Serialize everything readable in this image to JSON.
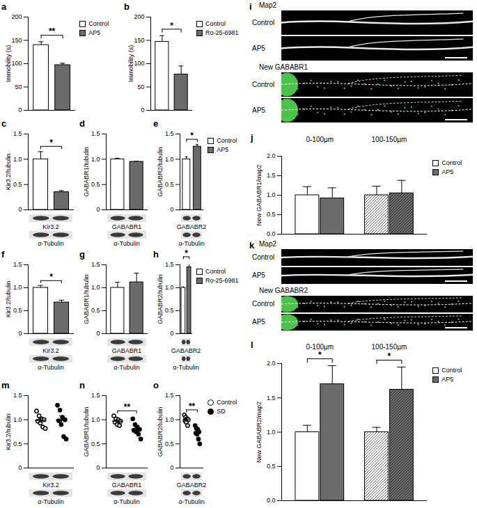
{
  "chart_data": [
    {
      "title": "a",
      "type": "bar",
      "ylabel": "Immobility (s)",
      "categories": [
        "Control",
        "AP5"
      ],
      "colors": [
        "#ffffff",
        "#6b6b6b"
      ],
      "values": [
        140,
        97
      ],
      "errors": [
        7,
        4
      ],
      "ylim": [
        0,
        200
      ],
      "yticks": [
        0,
        50,
        100,
        150,
        200
      ],
      "significance": "**",
      "legend": "right",
      "tick_labels": "y"
    },
    {
      "title": "b",
      "type": "bar",
      "ylabel": "Immobility (s)",
      "categories": [
        "Control",
        "Ro-25-6981"
      ],
      "colors": [
        "#ffffff",
        "#6b6b6b"
      ],
      "values": [
        147,
        77
      ],
      "errors": [
        13,
        18
      ],
      "ylim": [
        0,
        200
      ],
      "yticks": [
        0,
        50,
        100,
        150,
        200
      ],
      "significance": "*",
      "legend": "right",
      "tick_labels": "y"
    },
    {
      "title": "c",
      "type": "bar",
      "ylabel": "Kir3.2/tubulin",
      "categories": [
        "Control",
        "AP5"
      ],
      "colors": [
        "#ffffff",
        "#6b6b6b"
      ],
      "values": [
        1.0,
        0.35
      ],
      "errors": [
        0.15,
        0.03
      ],
      "ylim": [
        0,
        1.5
      ],
      "yticks": [
        0,
        0.5,
        {
          "value": 1,
          "label": "1.0"
        },
        1.5
      ],
      "significance": "*",
      "tick_labels": "y",
      "blots": [
        "Kir3.2",
        "α-Tubulin"
      ]
    },
    {
      "title": "d",
      "type": "bar",
      "ylabel": "GABABR1/tubulin",
      "categories": [
        "Control",
        "AP5"
      ],
      "colors": [
        "#ffffff",
        "#6b6b6b"
      ],
      "values": [
        1.0,
        0.95
      ],
      "errors": [
        0.02,
        0.01
      ],
      "ylim": [
        0,
        1.5
      ],
      "yticks": [
        0,
        0.5,
        {
          "value": 1,
          "label": "1.0"
        },
        1.5
      ],
      "tick_labels": "y",
      "blots": [
        "GABABR1",
        "α-Tubulin"
      ]
    },
    {
      "title": "e",
      "type": "bar",
      "ylabel": "GABABR2/tubulin",
      "categories": [
        "Control",
        "AP5"
      ],
      "colors": [
        "#ffffff",
        "#6b6b6b"
      ],
      "values": [
        1.0,
        1.25
      ],
      "errors": [
        0.05,
        0.04
      ],
      "ylim": [
        0,
        1.5
      ],
      "yticks": [
        0,
        0.5,
        {
          "value": 1,
          "label": "1.0"
        },
        1.5
      ],
      "significance": "*",
      "legend": "right",
      "tick_labels": "y",
      "blots": [
        "GABABR2",
        "α-Tubulin"
      ]
    },
    {
      "title": "f",
      "type": "bar",
      "ylabel": "Kir3.2/tubulin",
      "categories": [
        "Control",
        "Ro-25-6981"
      ],
      "colors": [
        "#ffffff",
        "#6b6b6b"
      ],
      "values": [
        1.0,
        0.68
      ],
      "errors": [
        0.05,
        0.05
      ],
      "ylim": [
        0,
        1.5
      ],
      "yticks": [
        0,
        0.5,
        {
          "value": 1,
          "label": "1.0"
        },
        1.5
      ],
      "significance": "*",
      "tick_labels": "y",
      "blots": [
        "Kir3.2",
        "α-Tubulin"
      ]
    },
    {
      "title": "g",
      "type": "bar",
      "ylabel": "GABABR1/tubulin",
      "categories": [
        "Control",
        "Ro-25-6981"
      ],
      "colors": [
        "#ffffff",
        "#6b6b6b"
      ],
      "values": [
        1.0,
        1.12
      ],
      "errors": [
        0.12,
        0.2
      ],
      "ylim": [
        0,
        1.5
      ],
      "yticks": [
        0,
        0.5,
        {
          "value": 1,
          "label": "1.0"
        },
        1.5
      ],
      "tick_labels": "y",
      "blots": [
        "GABABR1",
        "α-Tubulin"
      ]
    },
    {
      "title": "h",
      "type": "bar",
      "ylabel": "GABABR2/tubulin",
      "categories": [
        "Control",
        "Ro-25-6981"
      ],
      "colors": [
        "#ffffff",
        "#6b6b6b"
      ],
      "values": [
        1.0,
        1.45
      ],
      "errors": [
        0.02,
        0.12
      ],
      "ylim": [
        0,
        1.5
      ],
      "yticks": [
        0,
        0.5,
        {
          "value": 1,
          "label": "1.0"
        },
        1.5
      ],
      "significance": "*",
      "legend": "right",
      "tick_labels": "y",
      "blots": [
        "GABABR2",
        "α-Tubulin"
      ]
    },
    {
      "title": "j",
      "type": "bar",
      "ylabel": "New GABABR1/map2",
      "categories": [
        "0-100µm",
        "100-150µm"
      ],
      "series": [
        {
          "name": "Control",
          "color": "#ffffff",
          "values": [
            1.0,
            1.0
          ],
          "errors": [
            0.22,
            0.23
          ]
        },
        {
          "name": "AP5",
          "color": "#6b6b6b",
          "values": [
            0.92,
            1.05
          ],
          "errors": [
            0.27,
            0.33
          ]
        }
      ],
      "ylim": [
        0,
        2
      ],
      "yticks": [
        {
          "value": 0,
          "label": "0.0"
        },
        0.5,
        {
          "value": 1,
          "label": "1.0"
        },
        1.5,
        {
          "value": 2,
          "label": "2.0"
        }
      ],
      "legend": "right",
      "tick_labels": "y"
    },
    {
      "title": "l",
      "type": "bar",
      "ylabel": "New GABABR2/map2",
      "categories": [
        "0-100µm",
        "100-150µm"
      ],
      "series": [
        {
          "name": "Control",
          "color": "#ffffff",
          "values": [
            1.0,
            1.0
          ],
          "errors": [
            0.1,
            0.07
          ]
        },
        {
          "name": "AP5",
          "color": "#6b6b6b",
          "values": [
            1.7,
            1.62
          ],
          "errors": [
            0.27,
            0.33
          ]
        }
      ],
      "ylim": [
        0,
        2
      ],
      "yticks": [
        {
          "value": 0,
          "label": "0.0"
        },
        0.5,
        {
          "value": 1,
          "label": "1.0"
        },
        1.5,
        {
          "value": 2,
          "label": "2.0"
        }
      ],
      "significance": [
        "*",
        "*"
      ],
      "legend": "right",
      "tick_labels": "y"
    },
    {
      "title": "m",
      "type": "scatter",
      "ylabel": "Kir3.2/tubulin",
      "ylim": [
        0,
        1.5
      ],
      "yticks": [
        0,
        0.5,
        {
          "value": 1,
          "label": "1.0"
        },
        1.5
      ],
      "tick_labels": "y",
      "series": [
        {
          "name": "Control",
          "marker": "open circle",
          "color": "#000000",
          "values": [
            1.18,
            1.08,
            1.02,
            1.0,
            0.97,
            0.93,
            0.85,
            0.82
          ],
          "mean": 0.99,
          "error": 0.04
        },
        {
          "name": "SD",
          "marker": "circle",
          "color": "#000000",
          "values": [
            1.3,
            1.2,
            1.05,
            1.0,
            0.98,
            0.9,
            0.65,
            0.6
          ],
          "mean": 0.99,
          "error": 0.09
        }
      ],
      "blots": [
        "Kir3.2",
        "α-Tubulin"
      ]
    },
    {
      "title": "n",
      "type": "scatter",
      "ylabel": "GABABR1/tubulin",
      "ylim": [
        0,
        1.5
      ],
      "yticks": [
        0,
        0.5,
        {
          "value": 1,
          "label": "1.0"
        },
        1.5
      ],
      "tick_labels": "y",
      "significance": "**",
      "series": [
        {
          "name": "Control",
          "marker": "open circle",
          "color": "#000000",
          "values": [
            1.08,
            1.02,
            1.0,
            0.97,
            0.95,
            0.9,
            0.88
          ],
          "mean": 0.97,
          "error": 0.03
        },
        {
          "name": "SD",
          "marker": "circle",
          "color": "#000000",
          "values": [
            1.02,
            0.9,
            0.85,
            0.8,
            0.78,
            0.75,
            0.7,
            0.6
          ],
          "mean": 0.8,
          "error": 0.04
        }
      ],
      "blots": [
        "GABABR1",
        "α-Tubulin"
      ]
    },
    {
      "title": "o",
      "type": "scatter",
      "ylabel": "GABABR2/tubulin",
      "ylim": [
        0,
        1.5
      ],
      "yticks": [
        0,
        0.5,
        {
          "value": 1,
          "label": "1.0"
        },
        1.5
      ],
      "tick_labels": "y",
      "significance": "**",
      "legend": "right",
      "series": [
        {
          "name": "Control",
          "marker": "open circle",
          "color": "#000000",
          "values": [
            1.1,
            1.05,
            1.02,
            1.0,
            0.98,
            0.95,
            0.88
          ],
          "mean": 1.0,
          "error": 0.03
        },
        {
          "name": "SD",
          "marker": "circle",
          "color": "#000000",
          "values": [
            0.88,
            0.82,
            0.8,
            0.75,
            0.72,
            0.7,
            0.6,
            0.5
          ],
          "mean": 0.75,
          "error": 0.05
        }
      ],
      "blots": [
        "GABABR2",
        "α-Tubulin"
      ]
    }
  ],
  "image_panels": [
    {
      "panel": "i",
      "stain": "Map2",
      "conditions": [
        "Control",
        "AP5"
      ],
      "stain2": "New GABABR1"
    },
    {
      "panel": "k",
      "stain": "Map2",
      "conditions": [
        "Control",
        "AP5"
      ],
      "stain2": "New GABABR2"
    }
  ]
}
